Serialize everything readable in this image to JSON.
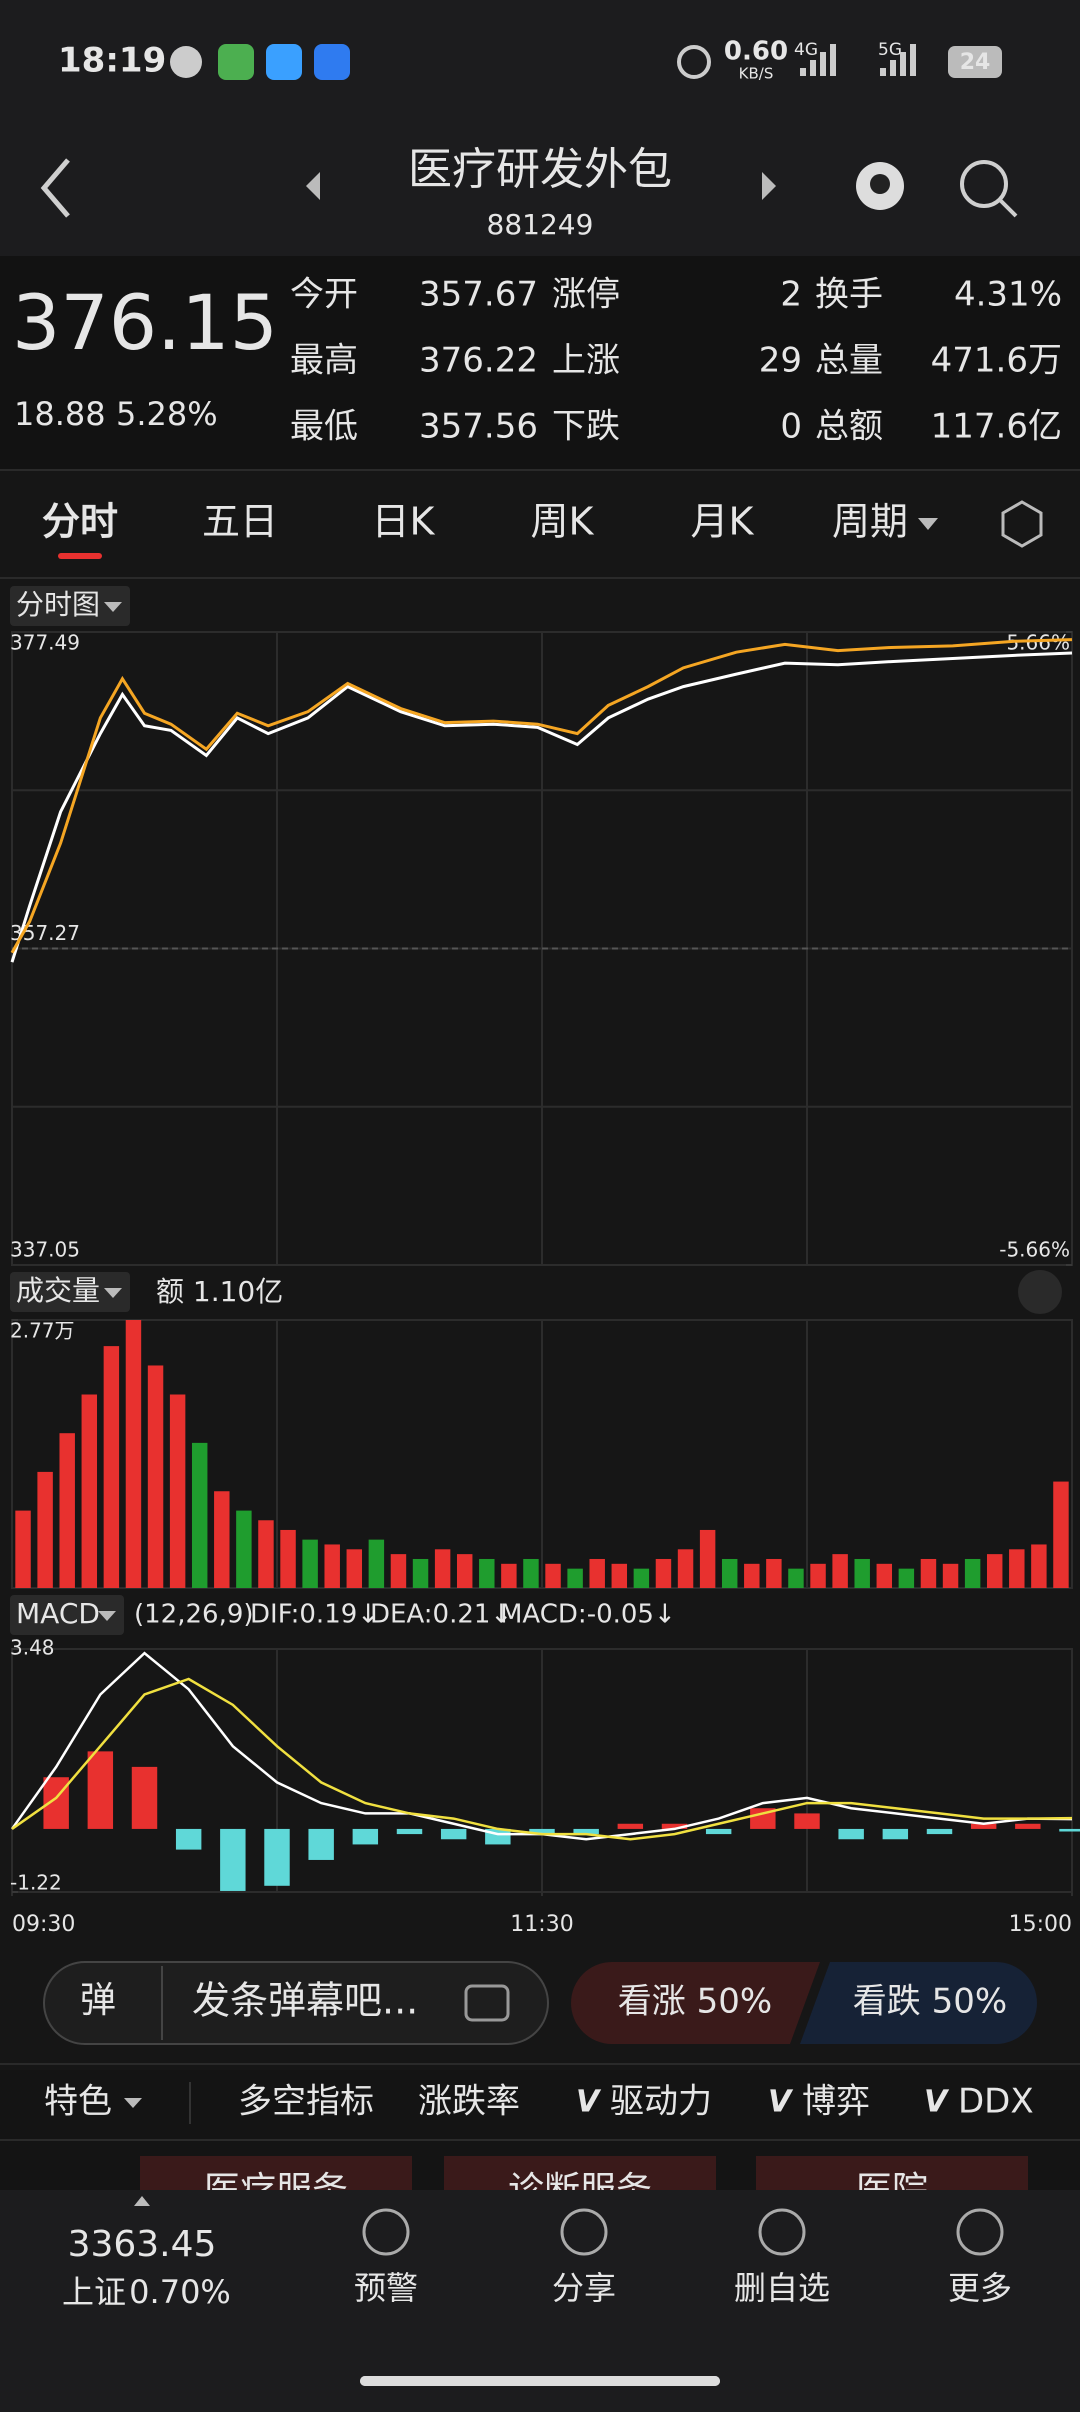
{
  "status_bar": {
    "time": "18:19",
    "speed": "0.60",
    "speed_unit": "KB/S",
    "net1": "4G",
    "net2": "5G",
    "battery": "24"
  },
  "header": {
    "title": "医疗研发外包",
    "code": "881249"
  },
  "quote": {
    "price": "376.15",
    "change": "18.88",
    "change_pct": "5.28%",
    "fields": [
      {
        "label": "今开",
        "value": "357.67"
      },
      {
        "label": "最高",
        "value": "376.22"
      },
      {
        "label": "最低",
        "value": "357.56"
      },
      {
        "label": "涨停",
        "value": "2"
      },
      {
        "label": "上涨",
        "value": "29"
      },
      {
        "label": "下跌",
        "value": "0"
      },
      {
        "label": "换手",
        "value": "4.31%"
      },
      {
        "label": "总量",
        "value": "471.6万"
      },
      {
        "label": "总额",
        "value": "117.6亿"
      }
    ]
  },
  "tabs": [
    "分时",
    "五日",
    "日K",
    "周K",
    "月K",
    "周期"
  ],
  "chart_data": [
    {
      "type": "line",
      "title": "分时图",
      "x": [
        0,
        4,
        11,
        20,
        25,
        30,
        36,
        44,
        51,
        58,
        67,
        76,
        88,
        98,
        109,
        119,
        128,
        135,
        144,
        152,
        164,
        175,
        187,
        199,
        213,
        227,
        240
      ],
      "xlim": [
        0,
        240
      ],
      "xticks": [
        {
          "value": 0,
          "label": "09:30"
        },
        {
          "value": 120,
          "label": "11:30"
        },
        {
          "value": 240,
          "label": "15:00"
        }
      ],
      "ylim": [
        337.05,
        377.49
      ],
      "yticks": [
        377.49,
        357.27,
        337.05
      ],
      "y2lim": [
        -5.66,
        5.66
      ],
      "y2ticks": [
        {
          "value": 5.66,
          "label": "5.66%"
        },
        {
          "value": -5.66,
          "label": "-5.66%"
        }
      ],
      "grid": true,
      "series": [
        {
          "color": "#ffffff",
          "values": [
            356.4,
            360.0,
            366.0,
            371.0,
            373.5,
            371.5,
            371.2,
            369.6,
            372.0,
            371.0,
            372.0,
            374.0,
            372.4,
            371.5,
            371.6,
            371.4,
            370.3,
            372.0,
            373.2,
            374.0,
            374.8,
            375.5,
            375.4,
            375.6,
            375.8,
            376.0,
            376.15
          ]
        },
        {
          "color": "#f5a623",
          "values": [
            357.0,
            359.0,
            364.0,
            372.0,
            374.5,
            372.3,
            371.6,
            370.0,
            372.3,
            371.5,
            372.4,
            374.2,
            372.6,
            371.7,
            371.8,
            371.6,
            371.0,
            372.8,
            374.0,
            375.2,
            376.2,
            376.7,
            376.3,
            376.5,
            376.6,
            376.9,
            377.0
          ]
        }
      ]
    },
    {
      "type": "bar",
      "title": "成交量",
      "amount": "额 1.10亿",
      "ylim": [
        0,
        2.77
      ],
      "yticks": [
        {
          "value": 2.77,
          "label": "2.77万"
        }
      ],
      "values": [
        0.8,
        1.2,
        1.6,
        2.0,
        2.5,
        2.77,
        2.3,
        2.0,
        1.5,
        1.0,
        0.8,
        0.7,
        0.6,
        0.5,
        0.45,
        0.4,
        0.5,
        0.35,
        0.3,
        0.4,
        0.35,
        0.3,
        0.25,
        0.3,
        0.25,
        0.2,
        0.3,
        0.25,
        0.2,
        0.3,
        0.4,
        0.6,
        0.3,
        0.25,
        0.3,
        0.2,
        0.25,
        0.35,
        0.3,
        0.25,
        0.2,
        0.3,
        0.25,
        0.3,
        0.35,
        0.4,
        0.45,
        1.1
      ],
      "colors": [
        "#e8312f",
        "#e8312f",
        "#e8312f",
        "#e8312f",
        "#e8312f",
        "#e8312f",
        "#e8312f",
        "#e8312f",
        "#1f9d2e",
        "#e8312f",
        "#1f9d2e",
        "#e8312f",
        "#e8312f",
        "#1f9d2e",
        "#e8312f",
        "#e8312f",
        "#1f9d2e",
        "#e8312f",
        "#1f9d2e",
        "#e8312f",
        "#e8312f",
        "#1f9d2e",
        "#e8312f",
        "#1f9d2e",
        "#e8312f",
        "#1f9d2e",
        "#e8312f",
        "#e8312f",
        "#1f9d2e",
        "#e8312f",
        "#e8312f",
        "#e8312f",
        "#1f9d2e",
        "#e8312f",
        "#e8312f",
        "#1f9d2e",
        "#e8312f",
        "#e8312f",
        "#1f9d2e",
        "#e8312f",
        "#1f9d2e",
        "#e8312f",
        "#e8312f",
        "#1f9d2e",
        "#e8312f",
        "#e8312f",
        "#e8312f",
        "#e8312f"
      ]
    },
    {
      "type": "macd",
      "title": "MACD",
      "params": "(12,26,9)",
      "legend": [
        {
          "text": "DIF:0.19↓",
          "color": "#ffffff"
        },
        {
          "text": "DEA:0.21↓",
          "color": "#f0e040"
        },
        {
          "text": "MACD:-0.05↓",
          "color": "#e040e0"
        }
      ],
      "x": [
        0,
        10,
        20,
        30,
        40,
        50,
        60,
        70,
        80,
        90,
        100,
        110,
        120,
        130,
        140,
        150,
        160,
        170,
        180,
        190,
        200,
        210,
        220,
        230,
        240
      ],
      "xlim": [
        0,
        240
      ],
      "ylim": [
        -1.22,
        3.48
      ],
      "yticks": [
        3.48,
        -1.22
      ],
      "series": [
        {
          "name": "DIF",
          "color": "#ffffff",
          "values": [
            0,
            1.2,
            2.6,
            3.4,
            2.7,
            1.6,
            0.9,
            0.5,
            0.3,
            0.3,
            0.1,
            -0.1,
            -0.1,
            -0.2,
            -0.1,
            0.0,
            0.2,
            0.5,
            0.6,
            0.4,
            0.3,
            0.2,
            0.1,
            0.2,
            0.19
          ]
        },
        {
          "name": "DEA",
          "color": "#f0e040",
          "values": [
            0,
            0.6,
            1.6,
            2.6,
            2.9,
            2.4,
            1.6,
            0.9,
            0.5,
            0.3,
            0.2,
            0.0,
            -0.1,
            -0.1,
            -0.2,
            -0.1,
            0.1,
            0.3,
            0.5,
            0.5,
            0.4,
            0.3,
            0.2,
            0.2,
            0.21
          ]
        }
      ],
      "histogram": {
        "name": "MACD",
        "values": [
          0,
          1.0,
          1.5,
          1.2,
          -0.4,
          -1.2,
          -1.1,
          -0.6,
          -0.3,
          -0.1,
          -0.2,
          -0.3,
          -0.1,
          -0.1,
          0.1,
          0.1,
          -0.1,
          0.4,
          0.3,
          -0.2,
          -0.2,
          -0.1,
          0.1,
          0.1,
          -0.05
        ]
      }
    }
  ],
  "danmu": {
    "icon": "弹",
    "placeholder": "发条弹幕吧...",
    "bull": "看涨 50%",
    "bear": "看跌 50%"
  },
  "feature_tabs": [
    "特色",
    "多空指标",
    "涨跌率",
    "驱动力",
    "博弈",
    "DDX"
  ],
  "sectors": [
    "医疗服务",
    "诊断服务",
    "医院"
  ],
  "bottom_nav": {
    "index_value": "3363.45",
    "index_name": "上证",
    "index_pct": "0.70%",
    "items": [
      "预警",
      "分享",
      "删自选",
      "更多"
    ]
  }
}
